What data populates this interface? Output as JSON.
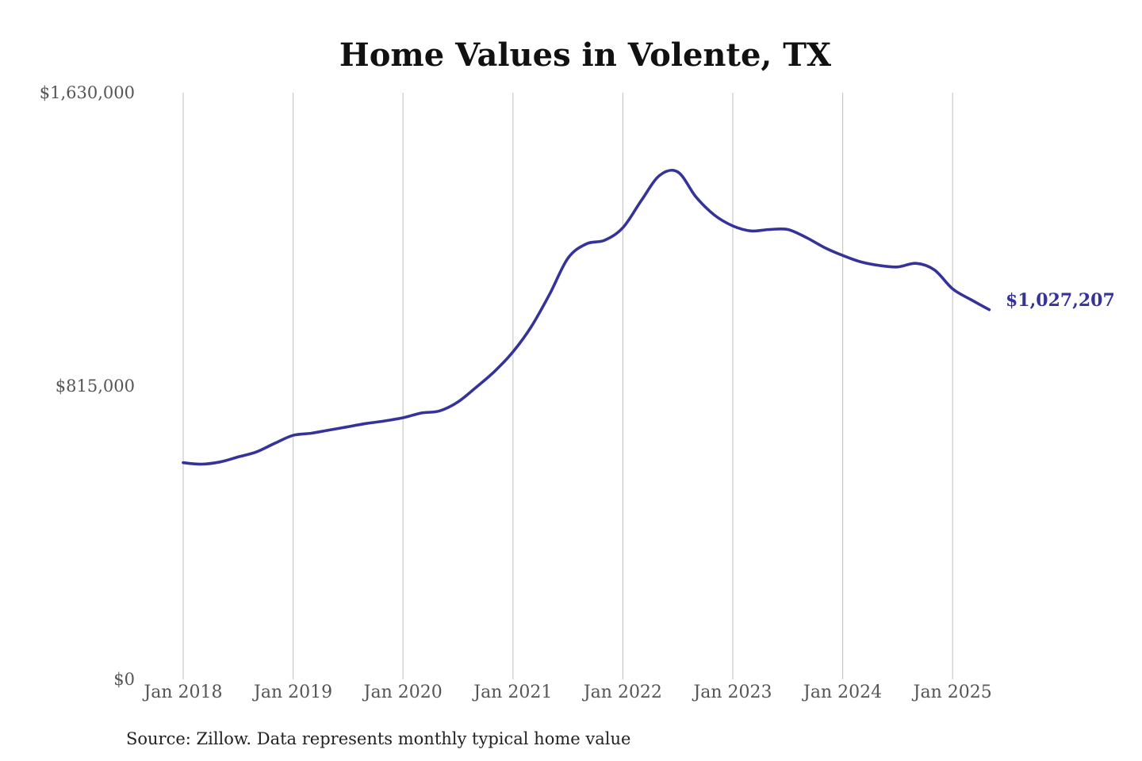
{
  "chart_data": {
    "type": "line",
    "title": "Home Values in Volente, TX",
    "xlabel": "",
    "ylabel": "",
    "ylim": [
      0,
      1630000
    ],
    "y_ticks": [
      "$0",
      "$815,000",
      "$1,630,000"
    ],
    "y_tick_values": [
      0,
      815000,
      1630000
    ],
    "x_ticks": [
      "Jan 2018",
      "Jan 2019",
      "Jan 2020",
      "Jan 2021",
      "Jan 2022",
      "Jan 2023",
      "Jan 2024",
      "Jan 2025"
    ],
    "x_tick_values": [
      "2018-01",
      "2019-01",
      "2020-01",
      "2021-01",
      "2022-01",
      "2023-01",
      "2024-01",
      "2025-01"
    ],
    "grid": "vertical",
    "legend": "none",
    "end_label": "$1,027,207",
    "line_color": "#35339a",
    "series": [
      {
        "x": [
          "2018-01",
          "2018-03",
          "2018-05",
          "2018-07",
          "2018-09",
          "2018-11",
          "2019-01",
          "2019-03",
          "2019-05",
          "2019-07",
          "2019-09",
          "2019-11",
          "2020-01",
          "2020-03",
          "2020-05",
          "2020-07",
          "2020-09",
          "2020-11",
          "2021-01",
          "2021-03",
          "2021-05",
          "2021-07",
          "2021-09",
          "2021-11",
          "2022-01",
          "2022-03",
          "2022-05",
          "2022-07",
          "2022-09",
          "2022-11",
          "2023-01",
          "2023-03",
          "2023-05",
          "2023-07",
          "2023-09",
          "2023-11",
          "2024-01",
          "2024-03",
          "2024-05",
          "2024-07",
          "2024-09",
          "2024-11",
          "2025-01",
          "2025-03",
          "2025-05"
        ],
        "values": [
          602000,
          598000,
          604000,
          618000,
          632000,
          656000,
          678000,
          684000,
          693000,
          702000,
          711000,
          718000,
          727000,
          740000,
          746000,
          771000,
          812000,
          856000,
          910000,
          980000,
          1070000,
          1170000,
          1210000,
          1220000,
          1255000,
          1330000,
          1400000,
          1410000,
          1340000,
          1290000,
          1260000,
          1246000,
          1250000,
          1250000,
          1228000,
          1200000,
          1178000,
          1160000,
          1150000,
          1146000,
          1156000,
          1138000,
          1085000,
          1055000,
          1027207
        ]
      }
    ]
  },
  "source_note": "Source: Zillow. Data represents monthly typical home value"
}
